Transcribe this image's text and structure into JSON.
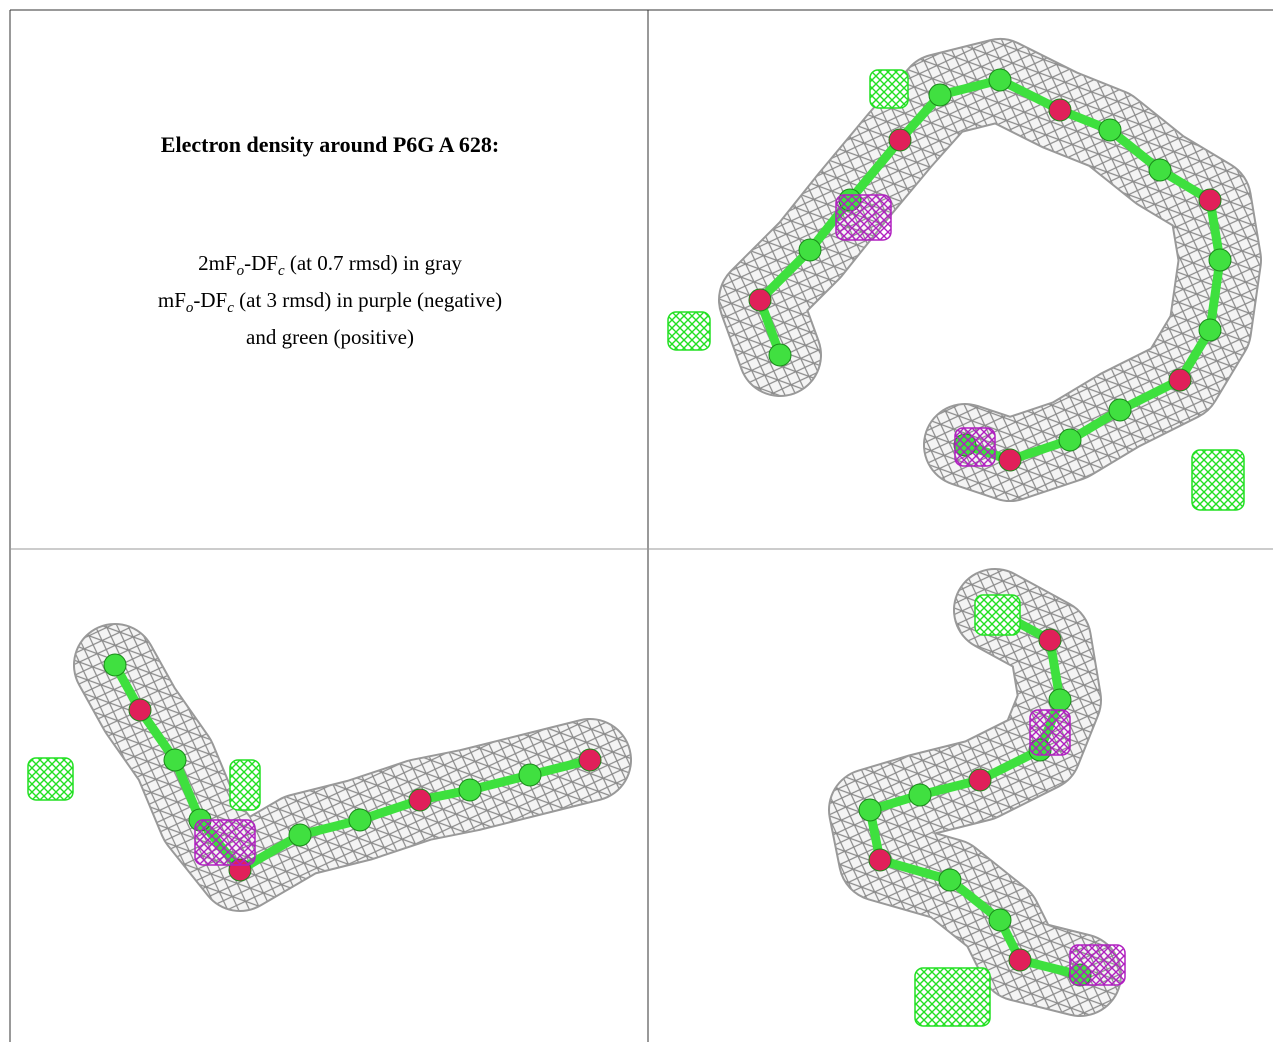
{
  "caption": {
    "title": "Electron density around P6G A 628:",
    "lines": [
      [
        {
          "text": "2mF"
        },
        {
          "text": "o",
          "sub": true
        },
        {
          "text": "-DF"
        },
        {
          "text": "c",
          "sub": true
        },
        {
          "text": " (at 0.7 rmsd) in gray"
        }
      ],
      [
        {
          "text": "mF"
        },
        {
          "text": "o",
          "sub": true
        },
        {
          "text": "-DF"
        },
        {
          "text": "c",
          "sub": true
        },
        {
          "text": " (at 3 rmsd) in purple (negative)"
        }
      ],
      [
        {
          "text": "and green (positive)"
        }
      ]
    ]
  }
}
